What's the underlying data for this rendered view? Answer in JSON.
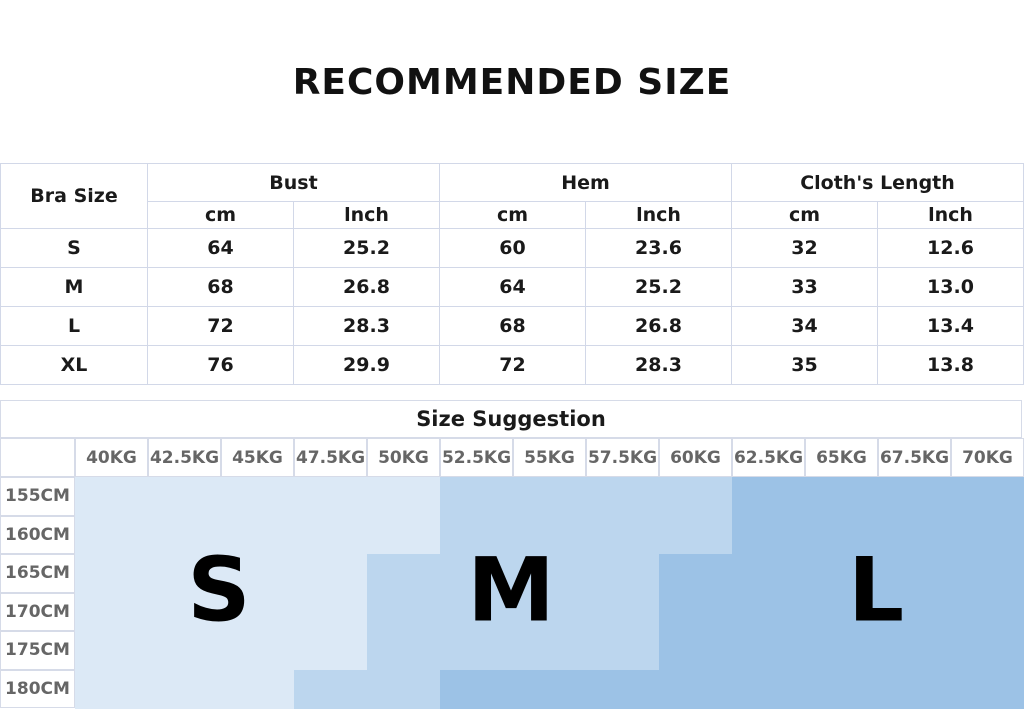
{
  "title": "RECOMMENDED SIZE",
  "size_table": {
    "corner": "Bra Size",
    "groups": [
      "Bust",
      "Hem",
      "Cloth's Length"
    ],
    "units": [
      "cm",
      "lnch",
      "cm",
      "lnch",
      "cm",
      "lnch"
    ],
    "rows": [
      [
        "S",
        "64",
        "25.2",
        "60",
        "23.6",
        "32",
        "12.6"
      ],
      [
        "M",
        "68",
        "26.8",
        "64",
        "25.2",
        "33",
        "13.0"
      ],
      [
        "L",
        "72",
        "28.3",
        "68",
        "26.8",
        "34",
        "13.4"
      ],
      [
        "XL",
        "76",
        "29.9",
        "72",
        "28.3",
        "35",
        "13.8"
      ]
    ]
  },
  "suggestion": {
    "title": "Size Suggestion",
    "weights": [
      "40KG",
      "42.5KG",
      "45KG",
      "47.5KG",
      "50KG",
      "52.5KG",
      "55KG",
      "57.5KG",
      "60KG",
      "62.5KG",
      "65KG",
      "67.5KG",
      "70KG"
    ],
    "heights": [
      "155CM",
      "160CM",
      "165CM",
      "170CM",
      "175CM",
      "180CM"
    ],
    "size_map": [
      [
        "S",
        "S",
        "S",
        "S",
        "S",
        "M",
        "M",
        "M",
        "M",
        "L",
        "L",
        "L",
        "L"
      ],
      [
        "S",
        "S",
        "S",
        "S",
        "S",
        "M",
        "M",
        "M",
        "M",
        "L",
        "L",
        "L",
        "L"
      ],
      [
        "S",
        "S",
        "S",
        "S",
        "M",
        "M",
        "M",
        "M",
        "L",
        "L",
        "L",
        "L",
        "L"
      ],
      [
        "S",
        "S",
        "S",
        "S",
        "M",
        "M",
        "M",
        "M",
        "L",
        "L",
        "L",
        "L",
        "L"
      ],
      [
        "S",
        "S",
        "S",
        "S",
        "M",
        "M",
        "M",
        "M",
        "L",
        "L",
        "L",
        "L",
        "L"
      ],
      [
        "S",
        "S",
        "S",
        "M",
        "M",
        "L",
        "L",
        "L",
        "L",
        "L",
        "L",
        "L",
        "L"
      ]
    ],
    "labels": [
      "S",
      "M",
      "L"
    ],
    "colors": {
      "S": "#dce9f6",
      "M": "#bcd6ee",
      "L": "#9cc2e6"
    }
  }
}
